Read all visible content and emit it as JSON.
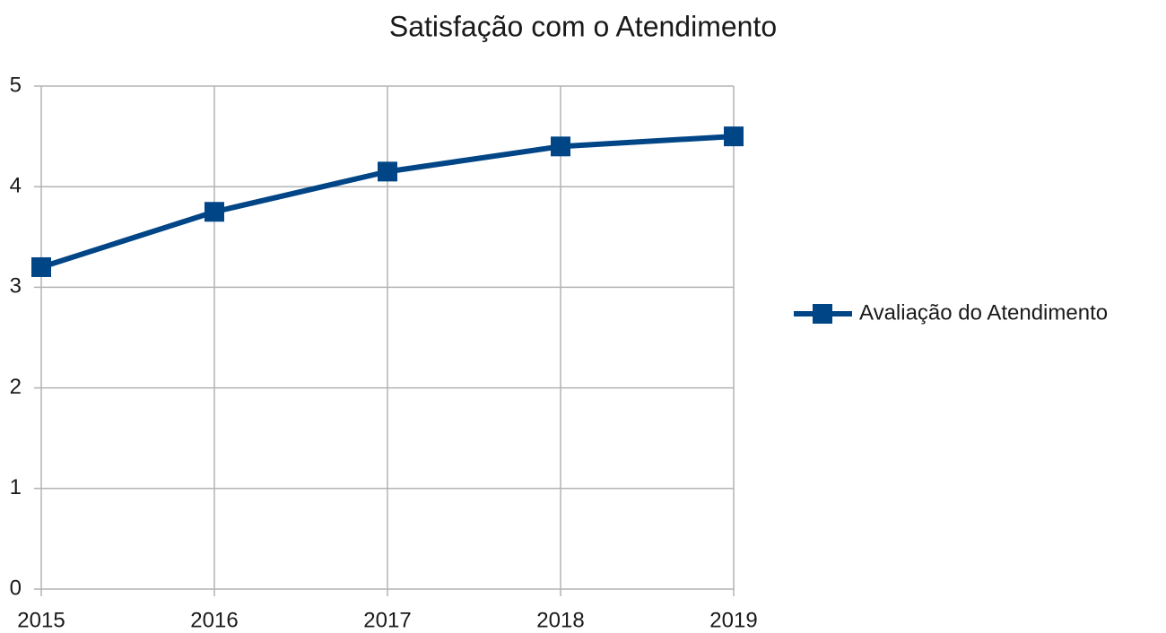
{
  "chart_data": {
    "type": "line",
    "title": "Satisfação com o Atendimento",
    "categories": [
      "2015",
      "2016",
      "2017",
      "2018",
      "2019"
    ],
    "series": [
      {
        "name": "Avaliação do Atendimento",
        "color": "#004586",
        "values": [
          3.2,
          3.75,
          4.15,
          4.4,
          4.5
        ]
      }
    ],
    "ylim": [
      0,
      5
    ],
    "yticks": [
      0,
      1,
      2,
      3,
      4,
      5
    ],
    "grid": true,
    "legend": "right"
  }
}
